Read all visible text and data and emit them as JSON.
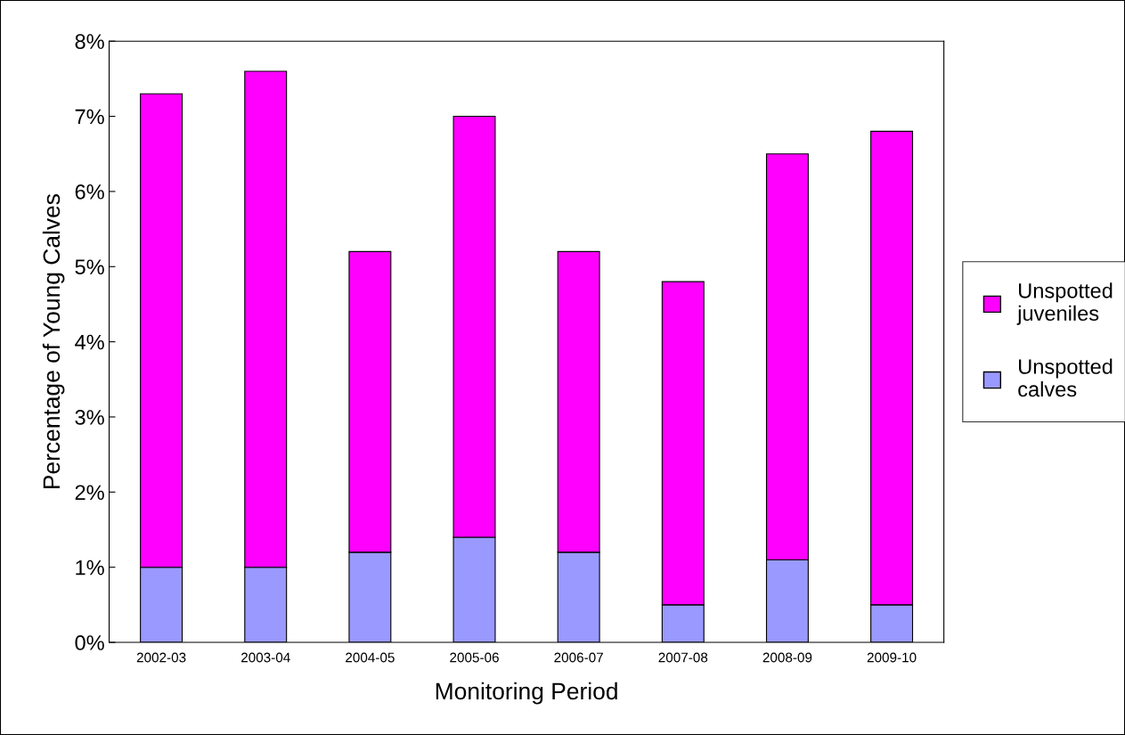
{
  "chart_data": {
    "type": "bar",
    "stacked": true,
    "xlabel": "Monitoring Period",
    "ylabel": "Percentage of Young Calves",
    "categories": [
      "2002-03",
      "2003-04",
      "2004-05",
      "2005-06",
      "2006-07",
      "2007-08",
      "2008-09",
      "2009-10"
    ],
    "series": [
      {
        "name": "Unspotted calves",
        "color": "#9999ff",
        "values": [
          1.0,
          1.0,
          1.2,
          1.4,
          1.2,
          0.5,
          1.1,
          0.5
        ]
      },
      {
        "name": "Unspotted juveniles",
        "color": "#ff00ff",
        "values": [
          6.3,
          6.6,
          4.0,
          5.6,
          4.0,
          4.3,
          5.4,
          6.3
        ]
      }
    ],
    "ylim": [
      0,
      8
    ],
    "yticks": [
      {
        "value": 0,
        "label": "0%"
      },
      {
        "value": 1,
        "label": "1%"
      },
      {
        "value": 2,
        "label": "2%"
      },
      {
        "value": 3,
        "label": "3%"
      },
      {
        "value": 4,
        "label": "4%"
      },
      {
        "value": 5,
        "label": "5%"
      },
      {
        "value": 6,
        "label": "6%"
      },
      {
        "value": 7,
        "label": "7%"
      },
      {
        "value": 8,
        "label": "8%"
      }
    ],
    "grid": false,
    "legend": "right"
  }
}
